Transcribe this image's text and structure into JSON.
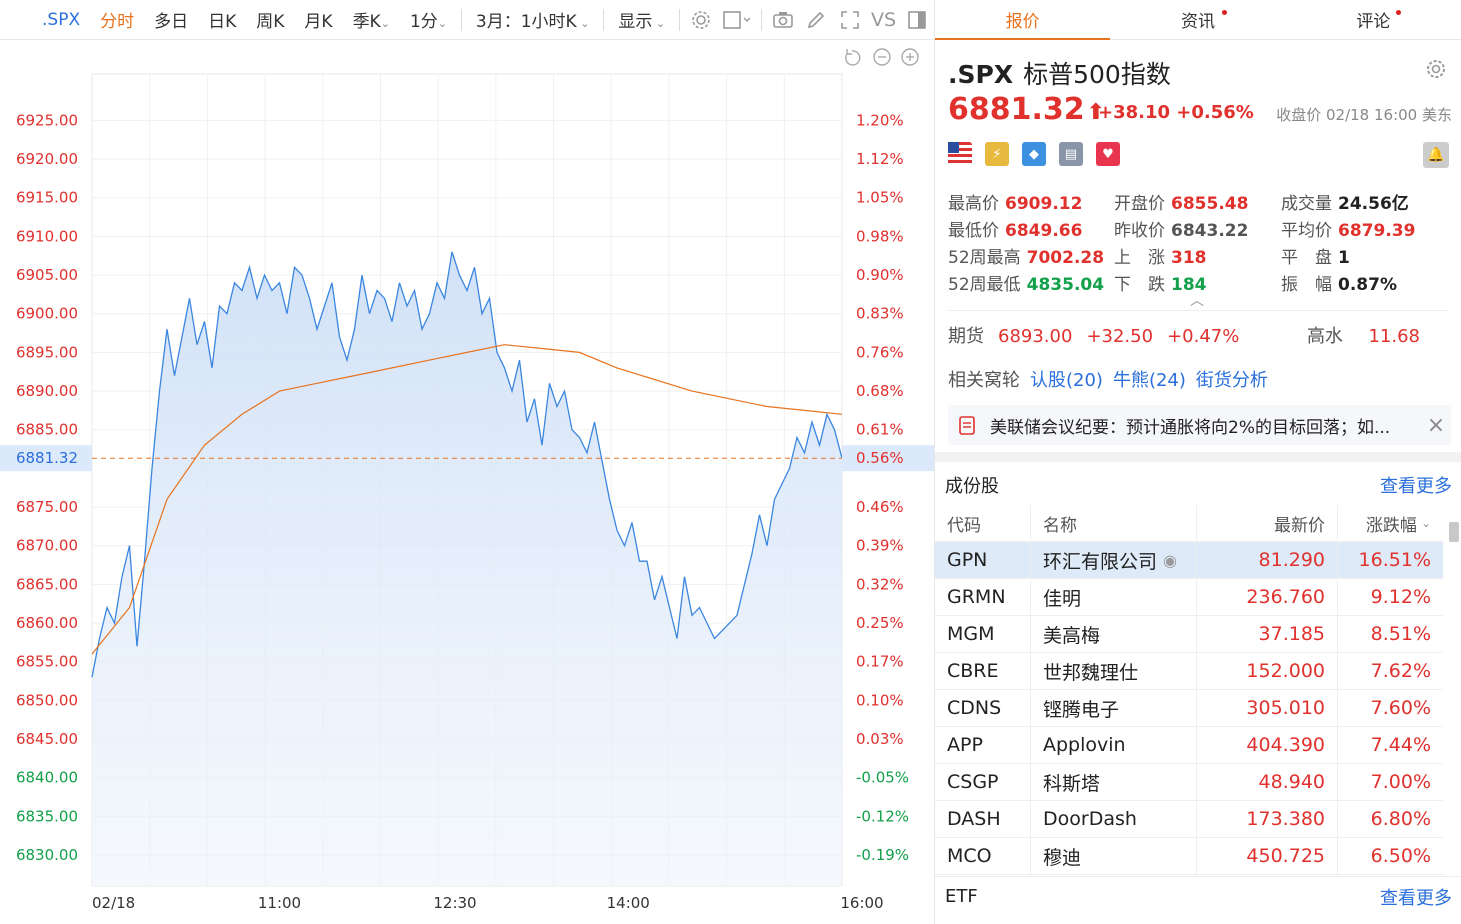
{
  "toolbar": {
    "symbol": ".SPX",
    "items": [
      "分时",
      "多日",
      "日K",
      "周K",
      "月K",
      "季K",
      "1分",
      "3月：1小时K",
      "显示"
    ],
    "active": "分时",
    "vs_label": "VS"
  },
  "chart_data": {
    "type": "line",
    "title": "",
    "x_labels": [
      "02/18",
      "11:00",
      "12:30",
      "14:00",
      "16:00"
    ],
    "y_left_ticks": [
      "6925.00",
      "6920.00",
      "6915.00",
      "6910.00",
      "6905.00",
      "6900.00",
      "6895.00",
      "6890.00",
      "6885.00",
      "6881.32",
      "6875.00",
      "6870.00",
      "6865.00",
      "6860.00",
      "6855.00",
      "6850.00",
      "6845.00",
      "6840.00",
      "6835.00",
      "6830.00"
    ],
    "y_right_ticks": [
      "1.20%",
      "1.12%",
      "1.05%",
      "0.98%",
      "0.90%",
      "0.83%",
      "0.76%",
      "0.68%",
      "0.61%",
      "0.56%",
      "0.46%",
      "0.39%",
      "0.32%",
      "0.25%",
      "0.17%",
      "0.10%",
      "0.03%",
      "-0.05%",
      "-0.12%",
      "-0.19%"
    ],
    "ylim": [
      6826,
      6931
    ],
    "current_price": 6881.32,
    "prev_close": 6843.22,
    "series": [
      {
        "color": "#3a86e0",
        "x": [
          0,
          1,
          2,
          3,
          4,
          5,
          6,
          7,
          8,
          9,
          10,
          11,
          12,
          13,
          14,
          15,
          16,
          17,
          18,
          19,
          20,
          21,
          22,
          23,
          24,
          25,
          26,
          27,
          28,
          29,
          30,
          31,
          32,
          33,
          34,
          35,
          36,
          37,
          38,
          39,
          40,
          41,
          42,
          43,
          44,
          45,
          46,
          47,
          48,
          49,
          50,
          51,
          52,
          53,
          54,
          55,
          56,
          57,
          58,
          59,
          60,
          61,
          62,
          63,
          64,
          65,
          66,
          67,
          68,
          69,
          70,
          71,
          72,
          73,
          74,
          75,
          76,
          77,
          78,
          79,
          80,
          81,
          82,
          83,
          84,
          85,
          86,
          87,
          88,
          89,
          90,
          91,
          92,
          93,
          94,
          95,
          96,
          97,
          98,
          99,
          100
        ],
        "y": [
          6853,
          6858,
          6862,
          6860,
          6866,
          6870,
          6857,
          6868,
          6880,
          6890,
          6898,
          6892,
          6897,
          6902,
          6896,
          6899,
          6893,
          6901,
          6900,
          6904,
          6903,
          6906,
          6902,
          6905,
          6903,
          6904,
          6900,
          6906,
          6905,
          6902,
          6898,
          6901,
          6904,
          6897,
          6894,
          6898,
          6905,
          6900,
          6903,
          6902,
          6899,
          6904,
          6901,
          6903,
          6898,
          6900,
          6904,
          6902,
          6908,
          6905,
          6903,
          6906,
          6900,
          6902,
          6895,
          6893,
          6890,
          6894,
          6886,
          6889,
          6883,
          6891,
          6888,
          6890,
          6885,
          6884,
          6882,
          6886,
          6881,
          6876,
          6872,
          6870,
          6873,
          6868,
          6868,
          6863,
          6866,
          6862,
          6858,
          6866,
          6861,
          6862,
          6860,
          6858,
          6859,
          6860,
          6861,
          6865,
          6869,
          6874,
          6870,
          6876,
          6878,
          6880,
          6884,
          6882,
          6886,
          6883,
          6887,
          6885,
          6881.32
        ]
      },
      {
        "color": "#e8731e",
        "x": [
          0,
          5,
          10,
          15,
          20,
          25,
          30,
          35,
          40,
          45,
          50,
          55,
          60,
          65,
          70,
          75,
          80,
          85,
          90,
          95,
          100
        ],
        "y": [
          6856,
          6862,
          6876,
          6883,
          6887,
          6890,
          6891,
          6892,
          6893,
          6894,
          6895,
          6896,
          6895.5,
          6895,
          6893,
          6891.5,
          6890,
          6889,
          6888,
          6887.5,
          6887
        ]
      }
    ]
  },
  "tabs": [
    {
      "label": "报价",
      "active": true,
      "dot": false
    },
    {
      "label": "资讯",
      "active": false,
      "dot": true
    },
    {
      "label": "评论",
      "active": false,
      "dot": true
    }
  ],
  "quote": {
    "code": ".SPX",
    "name": "标普500指数",
    "price": "6881.32",
    "arrow": "⬆",
    "change": "+38.10 +0.56%",
    "close_info": "收盘价 02/18 16:00 美东"
  },
  "stats": [
    [
      {
        "label": "最高价",
        "value": "6909.12",
        "color": "red"
      },
      {
        "label": "开盘价",
        "value": "6855.48",
        "color": "red"
      },
      {
        "label": "成交量",
        "value": "24.56亿",
        "color": "dark"
      }
    ],
    [
      {
        "label": "最低价",
        "value": "6849.66",
        "color": "red"
      },
      {
        "label": "昨收价",
        "value": "6843.22",
        "color": "gray"
      },
      {
        "label": "平均价",
        "value": "6879.39",
        "color": "red"
      }
    ],
    [
      {
        "label": "52周最高",
        "value": "7002.28",
        "color": "red"
      },
      {
        "label": "上　涨",
        "value": "318",
        "color": "red"
      },
      {
        "label": "平　盘",
        "value": "1",
        "color": "dark"
      }
    ],
    [
      {
        "label": "52周最低",
        "value": "4835.04",
        "color": "green"
      },
      {
        "label": "下　跌",
        "value": "184",
        "color": "green"
      },
      {
        "label": "振　幅",
        "value": "0.87%",
        "color": "dark"
      }
    ]
  ],
  "futures": {
    "label": "期货",
    "price": "6893.00",
    "change": "+32.50",
    "pct": "+0.47%",
    "right_label": "高水",
    "right_value": "11.68"
  },
  "warrants": {
    "label": "相关窝轮",
    "links": [
      "认股(20)",
      "牛熊(24)",
      "街货分析"
    ]
  },
  "news": {
    "text": "美联储会议纪要：预计通胀将向2%的目标回落；如..."
  },
  "components": {
    "title": "成份股",
    "more": "查看更多",
    "headers": [
      "代码",
      "名称",
      "最新价",
      "涨跌幅"
    ],
    "rows": [
      {
        "code": "GPN",
        "name": "环汇有限公司",
        "price": "81.290",
        "pct": "16.51%"
      },
      {
        "code": "GRMN",
        "name": "佳明",
        "price": "236.760",
        "pct": "9.12%"
      },
      {
        "code": "MGM",
        "name": "美高梅",
        "price": "37.185",
        "pct": "8.51%"
      },
      {
        "code": "CBRE",
        "name": "世邦魏理仕",
        "price": "152.000",
        "pct": "7.62%"
      },
      {
        "code": "CDNS",
        "name": "铿腾电子",
        "price": "305.010",
        "pct": "7.60%"
      },
      {
        "code": "APP",
        "name": "Applovin",
        "price": "404.390",
        "pct": "7.44%"
      },
      {
        "code": "CSGP",
        "name": "科斯塔",
        "price": "48.940",
        "pct": "7.00%"
      },
      {
        "code": "DASH",
        "name": "DoorDash",
        "price": "173.380",
        "pct": "6.80%"
      },
      {
        "code": "MCO",
        "name": "穆迪",
        "price": "450.725",
        "pct": "6.50%"
      }
    ]
  },
  "etf": {
    "title": "ETF",
    "more": "查看更多"
  }
}
